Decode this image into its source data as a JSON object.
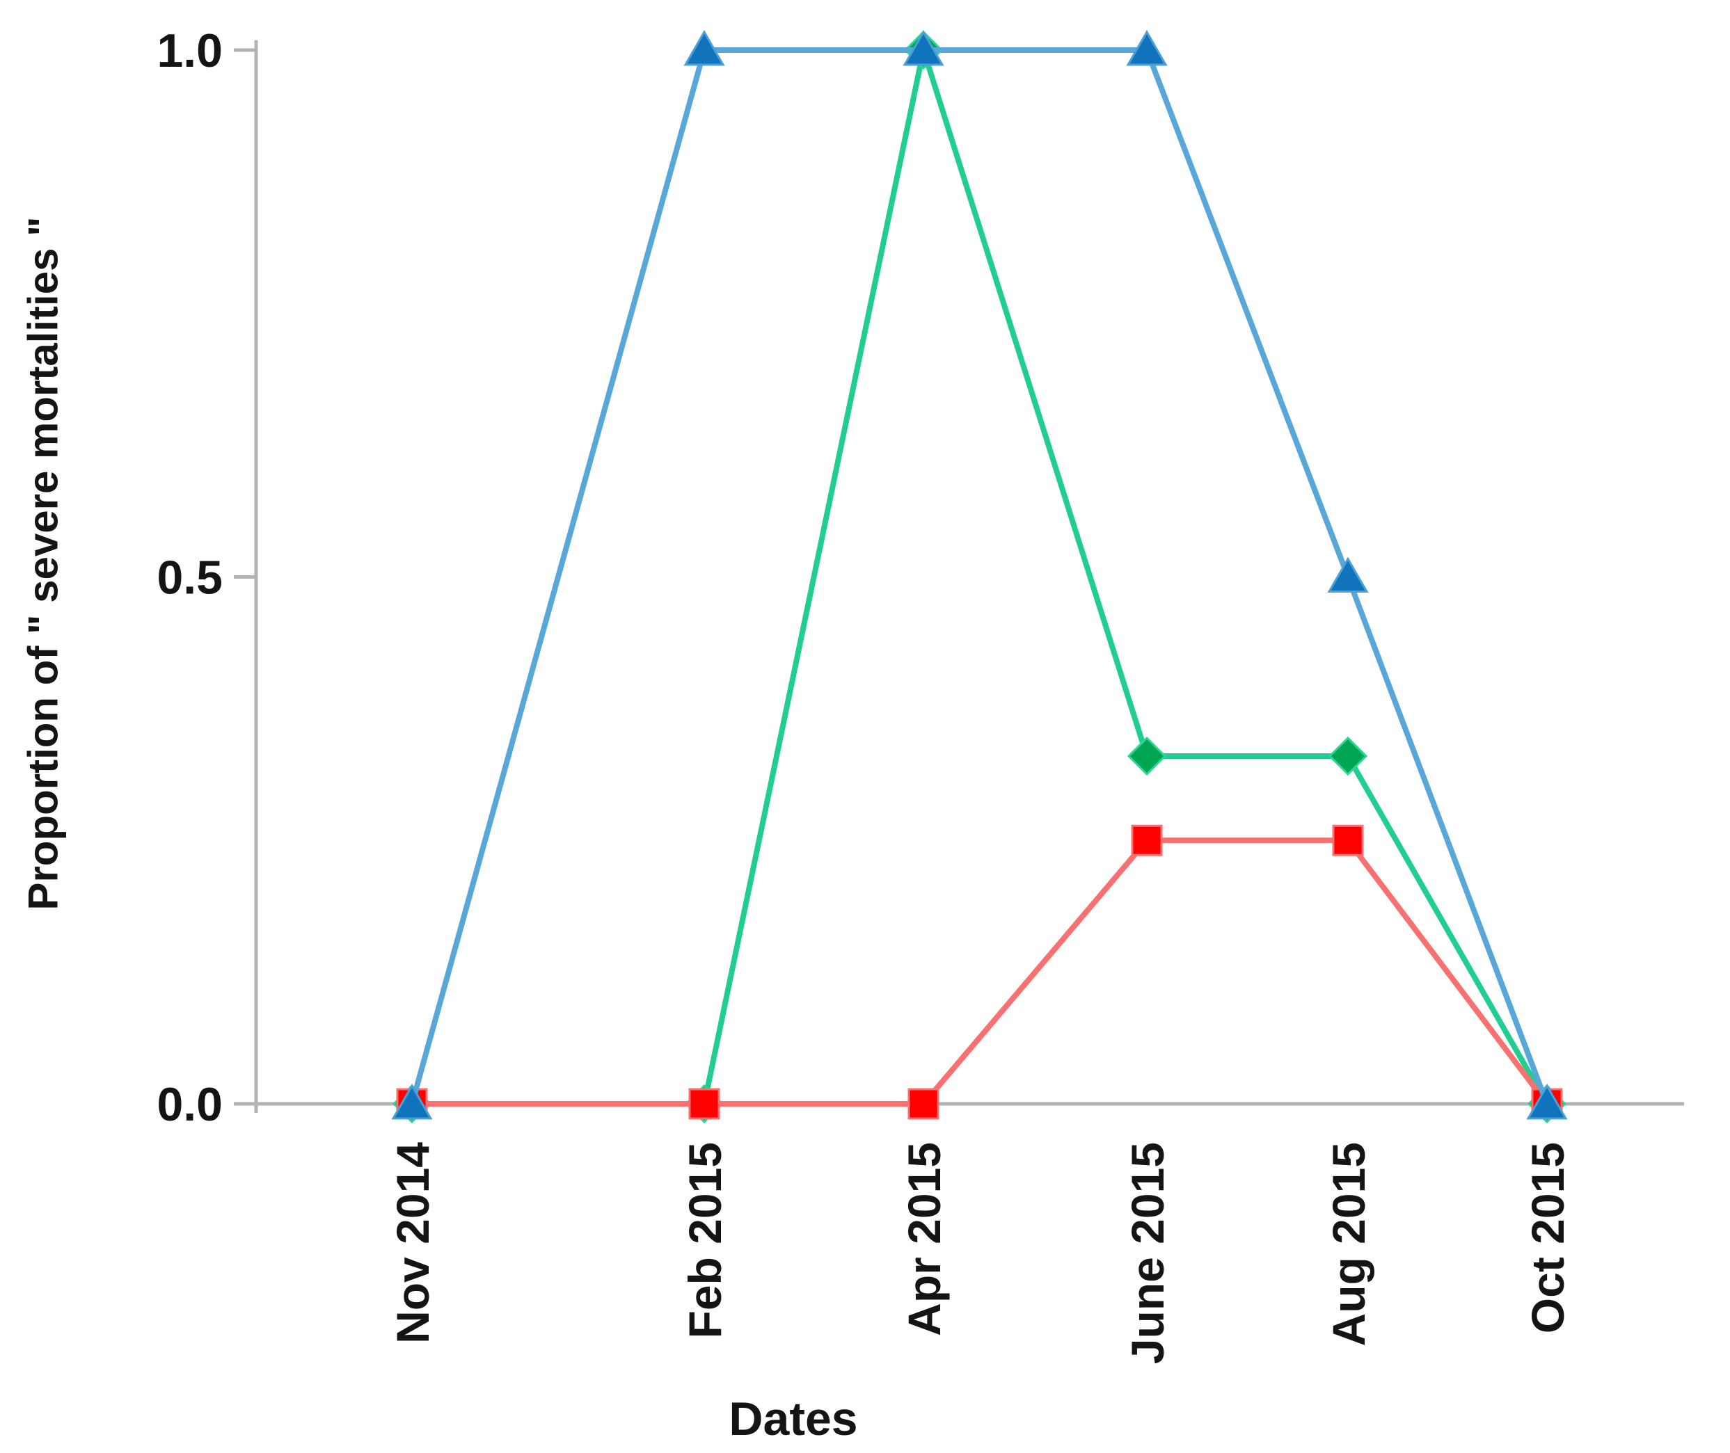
{
  "chart_data": {
    "type": "line",
    "title": "",
    "xlabel": "Dates",
    "ylabel": "Proportion of \" severe mortalities \"",
    "categories": [
      "Nov 2014",
      "Feb 2015",
      "Apr 2015",
      "June 2015",
      "Aug 2015",
      "Oct 2015"
    ],
    "series": [
      {
        "name": "blue-triangle-series",
        "marker": "triangle",
        "line_color": "#58A7D9",
        "marker_color": "#1173BC",
        "marker_stroke": "#4BA0D8",
        "z": 3,
        "values": [
          0,
          1.0,
          1.0,
          1.0,
          0.5,
          0
        ]
      },
      {
        "name": "green-diamond-series",
        "marker": "diamond",
        "line_color": "#22CD90",
        "marker_color": "#00A551",
        "marker_stroke": "#2BD695",
        "z": 1,
        "values": [
          0,
          0,
          1.0,
          0.33,
          0.33,
          0
        ]
      },
      {
        "name": "red-square-series",
        "marker": "square",
        "line_color": "#F87070",
        "marker_color": "#FE0000",
        "marker_stroke": "#F87070",
        "z": 2,
        "values": [
          0,
          0,
          0,
          0.25,
          0.25,
          0
        ]
      }
    ],
    "ylim": [
      0,
      1
    ],
    "yticks": [
      {
        "value": 0,
        "label": "0.0"
      },
      {
        "value": 0.5,
        "label": "0.5"
      },
      {
        "value": 1,
        "label": "1.0"
      }
    ],
    "grid": false,
    "legend": "none",
    "axis_color": "#B3B3B3",
    "text_color": "#141414",
    "layout": {
      "plot_left": 368,
      "plot_right": 2420,
      "plot_top": 72,
      "plot_bottom": 1587,
      "axis_top": 58,
      "axis_bottom": 1600,
      "tick_len": 32,
      "x_positions": [
        592,
        1012,
        1327,
        1648,
        1937,
        2223
      ]
    }
  }
}
